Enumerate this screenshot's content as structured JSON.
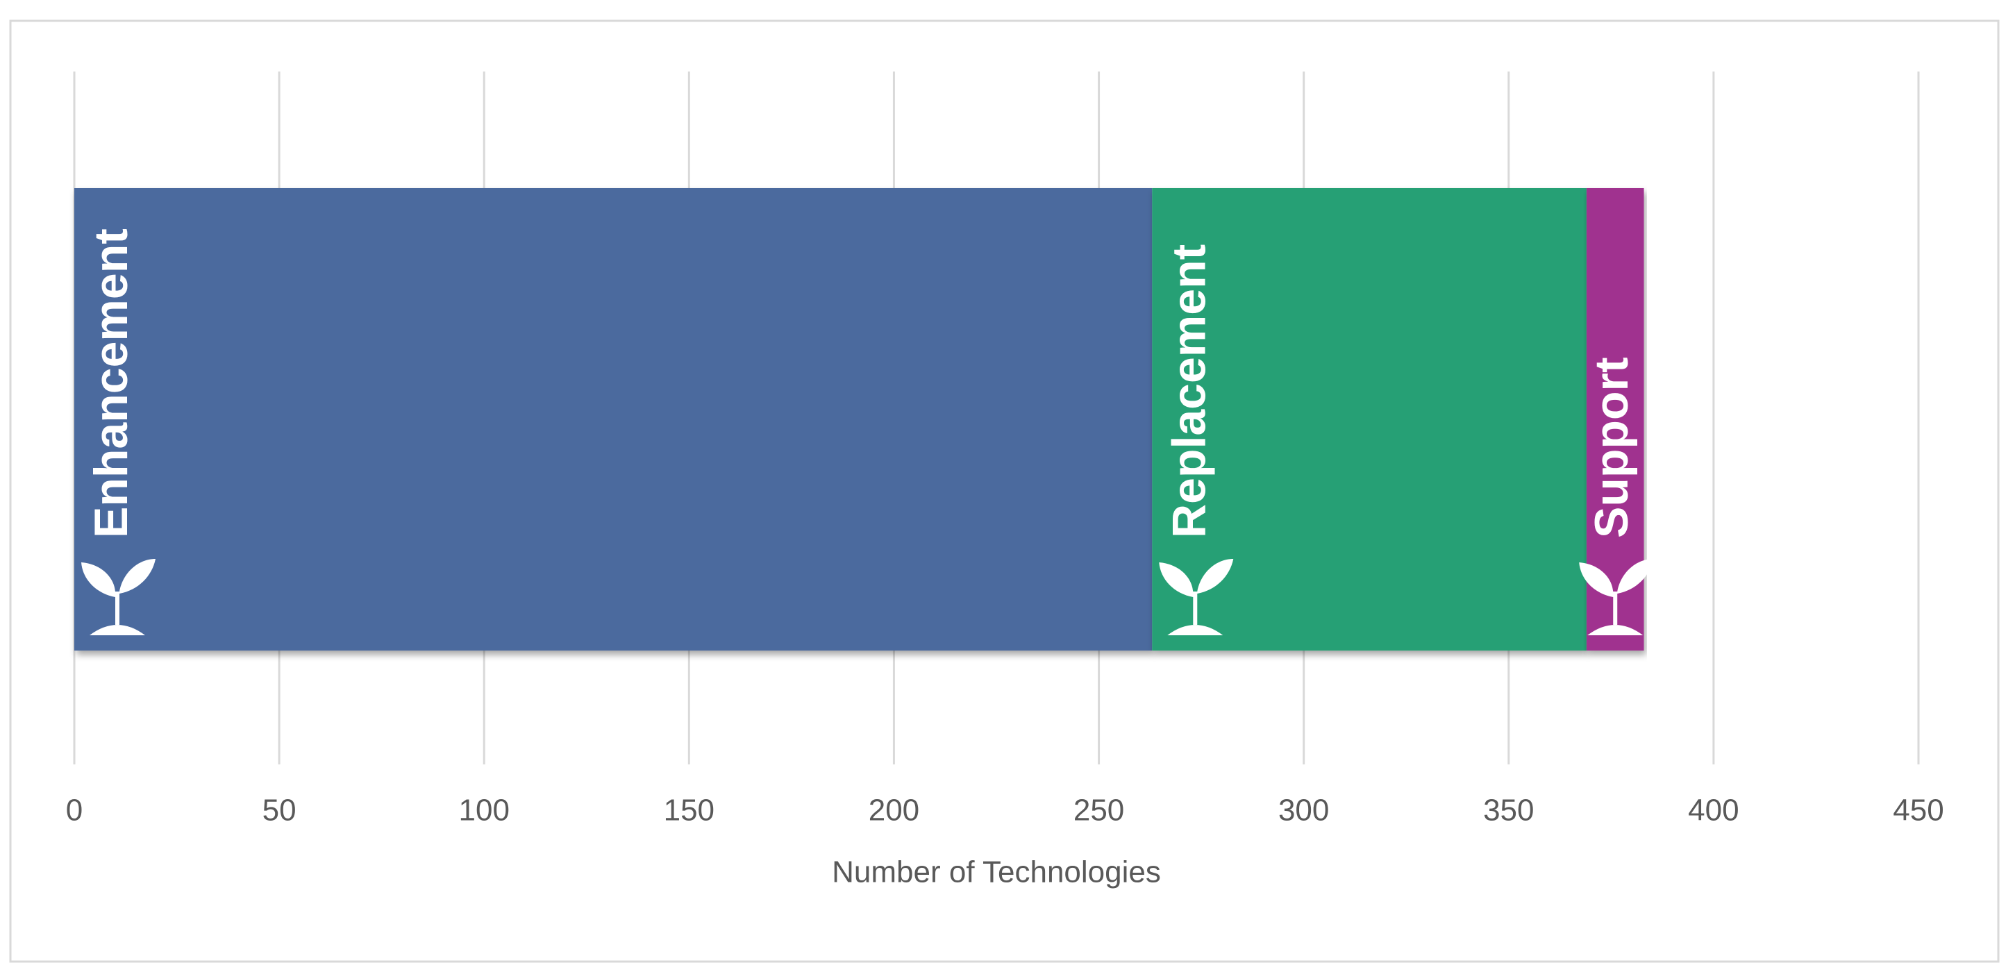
{
  "chart_data": {
    "type": "bar",
    "orientation": "horizontal",
    "stacked": true,
    "categories": [
      null
    ],
    "series": [
      {
        "name": "Enhancement",
        "color": "#4b6a9e",
        "values": [
          263
        ]
      },
      {
        "name": "Replacement",
        "color": "#26a074",
        "values": [
          106
        ]
      },
      {
        "name": "Support",
        "color": "#a0328f",
        "values": [
          14
        ]
      }
    ],
    "xlim": [
      0,
      450
    ],
    "xticks": [
      0,
      50,
      100,
      150,
      200,
      250,
      300,
      350,
      400,
      450
    ],
    "xlabel": "Number of Technologies",
    "grid": true
  }
}
